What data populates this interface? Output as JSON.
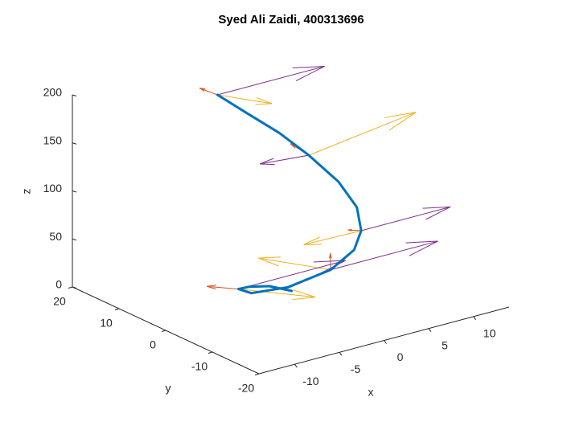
{
  "chart_data": {
    "type": "line3d",
    "title": "Syed Ali Zaidi, 400313696",
    "xlabel": "x",
    "ylabel": "y",
    "zlabel": "z",
    "xlim": [
      -14,
      14
    ],
    "ylim": [
      -20,
      20
    ],
    "zlim": [
      0,
      200
    ],
    "xticks": [
      -10,
      -5,
      0,
      5,
      10
    ],
    "yticks": [
      -20,
      -10,
      0,
      10,
      20
    ],
    "zticks": [
      0,
      50,
      100,
      150,
      200
    ],
    "color": "#0072bd",
    "x": [
      1.0,
      -0.61,
      -2.89,
      -4.71,
      -5.45,
      -3.1,
      1.13,
      4.37,
      6.34,
      7.4,
      7.07,
      5.34,
      2.98,
      0,
      -3.68
    ],
    "y": [
      1.73,
      3.45,
      3.45,
      2.2,
      -1.98,
      -5.37,
      -6.4,
      -5.21,
      -2.96,
      0,
      3.3,
      6.36,
      8.18,
      9.1,
      8.66
    ],
    "z": [
      0,
      5,
      10,
      15,
      22,
      30,
      40,
      50,
      60,
      75,
      95,
      120,
      145,
      170,
      200
    ],
    "quiver": {
      "x": [
        -3.68,
        5.34,
        6.34,
        1.13,
        -4.71
      ],
      "y": [
        8.66,
        6.36,
        -2.96,
        -6.4,
        2.2
      ],
      "z": [
        200,
        120,
        60,
        40,
        15
      ],
      "vectors": [
        {
          "color": "#d95319",
          "u": [
            -2,
            -1,
            -2,
            1,
            -3
          ],
          "v": [
            0,
            2,
            -1,
            2,
            1
          ],
          "w": [
            12,
            10,
            8,
            10,
            8
          ]
        },
        {
          "color": "#edb120",
          "u": [
            4,
            12,
            -8,
            -6,
            6
          ],
          "v": [
            -4,
            0,
            -3,
            4,
            -5
          ],
          "w": [
            -10,
            15,
            12,
            18,
            -12
          ]
        },
        {
          "color": "#7e2f8e",
          "u": [
            12,
            -6,
            10,
            12,
            12
          ],
          "v": [
            0,
            -1,
            0,
            0,
            0
          ],
          "w": [
            0,
            8,
            0,
            0,
            0
          ]
        }
      ]
    }
  }
}
